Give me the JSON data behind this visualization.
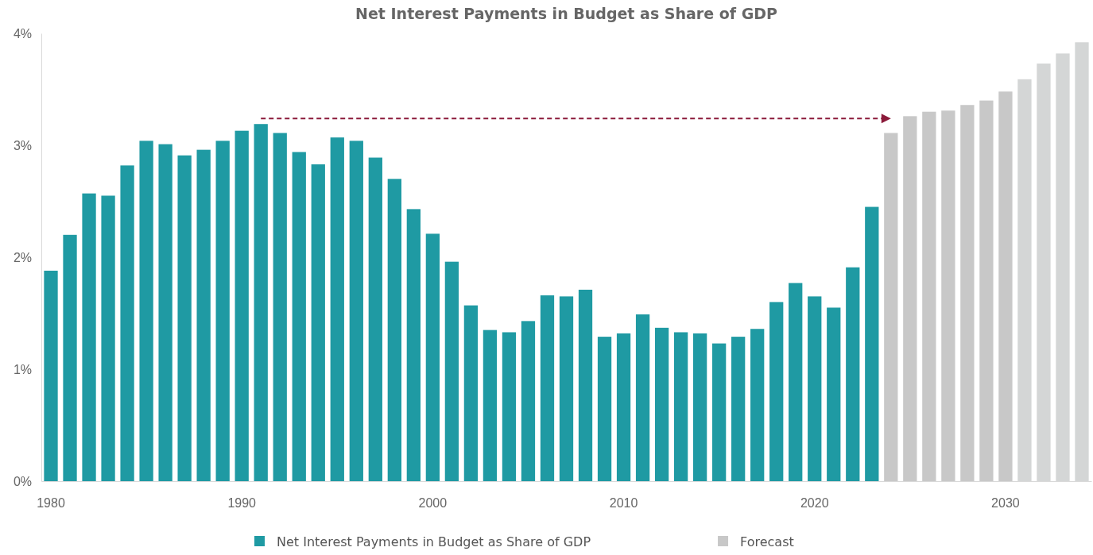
{
  "chart_data": {
    "type": "bar",
    "title": "Net Interest Payments in Budget as Share of GDP",
    "categories": [
      "1980",
      null,
      null,
      null,
      null,
      null,
      null,
      null,
      null,
      null,
      "1990",
      null,
      null,
      null,
      null,
      null,
      null,
      null,
      null,
      null,
      "2000",
      null,
      null,
      null,
      null,
      null,
      null,
      null,
      null,
      null,
      "2010",
      null,
      null,
      null,
      null,
      null,
      null,
      null,
      null,
      null,
      "2020",
      null,
      null,
      null,
      null,
      null,
      null,
      null,
      null,
      null,
      "2030",
      null,
      null,
      null,
      null
    ],
    "series": [
      {
        "name": "Net Interest Payments in Budget as Share of GDP",
        "color": "#1f9aa3",
        "values": [
          1.88,
          2.2,
          2.57,
          2.55,
          2.82,
          3.04,
          3.01,
          2.91,
          2.96,
          3.04,
          3.13,
          3.19,
          3.11,
          2.94,
          2.83,
          3.07,
          3.04,
          2.89,
          2.7,
          2.43,
          2.21,
          1.96,
          1.57,
          1.35,
          1.33,
          1.43,
          1.66,
          1.65,
          1.71,
          1.29,
          1.32,
          1.49,
          1.37,
          1.33,
          1.32,
          1.23,
          1.29,
          1.36,
          1.6,
          1.77,
          1.65,
          1.55,
          1.91,
          2.45,
          null,
          null,
          null,
          null,
          null,
          null,
          null,
          null,
          null,
          null,
          null
        ]
      },
      {
        "name": "Forecast",
        "color": "#c8c8c8",
        "colors": [
          null,
          null,
          null,
          null,
          null,
          null,
          null,
          null,
          null,
          null,
          null,
          null,
          null,
          null,
          null,
          null,
          null,
          null,
          null,
          null,
          null,
          null,
          null,
          null,
          null,
          null,
          null,
          null,
          null,
          null,
          null,
          null,
          null,
          null,
          null,
          null,
          null,
          null,
          null,
          null,
          null,
          null,
          null,
          null,
          "#c8c8c8",
          "#c8c8c8",
          "#c8c8c8",
          "#c8c8c8",
          "#c8c8c8",
          "#c8c8c8",
          "#c8c8c8",
          "#d4d6d6",
          "#d4d6d6",
          "#d4d6d6",
          "#d4d6d6"
        ],
        "values": [
          null,
          null,
          null,
          null,
          null,
          null,
          null,
          null,
          null,
          null,
          null,
          null,
          null,
          null,
          null,
          null,
          null,
          null,
          null,
          null,
          null,
          null,
          null,
          null,
          null,
          null,
          null,
          null,
          null,
          null,
          null,
          null,
          null,
          null,
          null,
          null,
          null,
          null,
          null,
          null,
          null,
          null,
          null,
          null,
          3.11,
          3.26,
          3.3,
          3.31,
          3.36,
          3.4,
          3.48,
          3.59,
          3.73,
          3.82,
          3.92
        ]
      }
    ],
    "ylim": [
      0,
      4
    ],
    "yticks": [
      {
        "value": 0,
        "label": "0%"
      },
      {
        "value": 1,
        "label": "1%"
      },
      {
        "value": 2,
        "label": "2%"
      },
      {
        "value": 3,
        "label": "3%"
      },
      {
        "value": 4,
        "label": "4%"
      }
    ],
    "legend": "bottom"
  }
}
